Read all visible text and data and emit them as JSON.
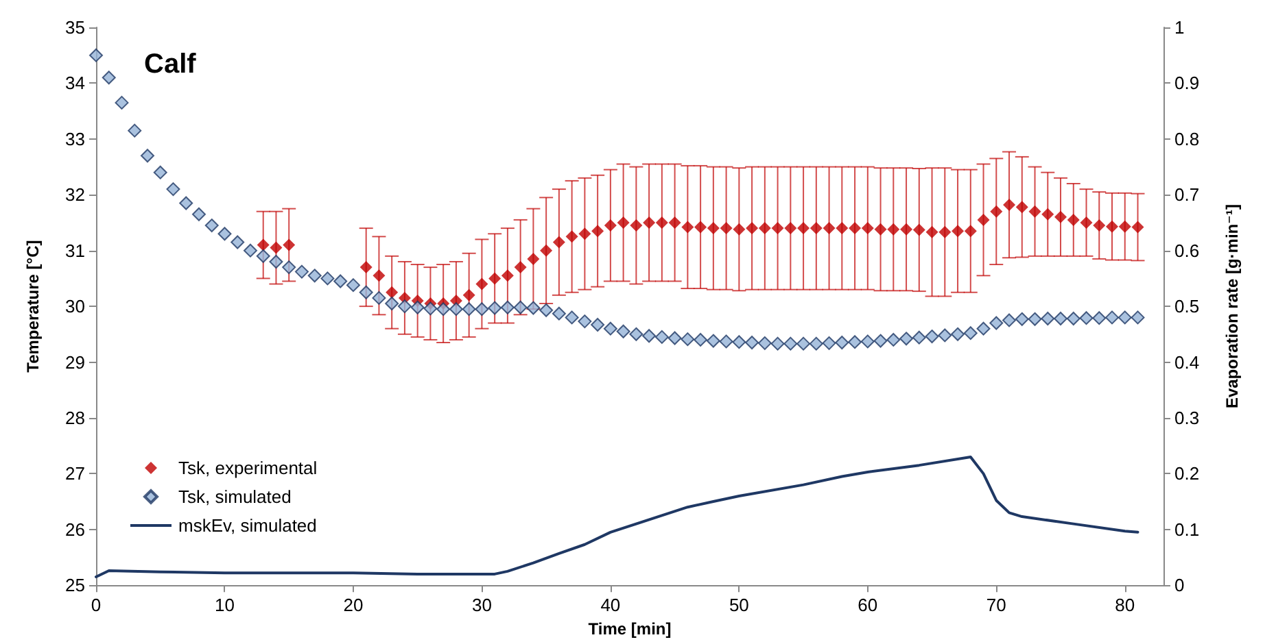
{
  "chart_data": {
    "type": "scatter",
    "title": "Calf",
    "xlabel": "Time [min]",
    "ylabel": "Temperature [°C]",
    "y2label": "Evaporation rate [g·min⁻¹]",
    "xlim": [
      0,
      83
    ],
    "xticks": [
      0,
      10,
      20,
      30,
      40,
      50,
      60,
      70,
      80
    ],
    "ylim": [
      25,
      35
    ],
    "yticks": [
      25,
      26,
      27,
      28,
      29,
      30,
      31,
      32,
      33,
      34,
      35
    ],
    "y2lim": [
      0,
      1
    ],
    "y2ticks": [
      0,
      0.1,
      0.2,
      0.3,
      0.4,
      0.5,
      0.6,
      0.7,
      0.8,
      0.9,
      1
    ],
    "grid": false,
    "legend": "bottom left",
    "marker": "diamond",
    "x": [
      0,
      1,
      2,
      3,
      4,
      5,
      6,
      7,
      8,
      9,
      10,
      11,
      12,
      13,
      14,
      15,
      16,
      17,
      18,
      19,
      20,
      21,
      22,
      23,
      24,
      25,
      26,
      27,
      28,
      29,
      30,
      31,
      32,
      33,
      34,
      35,
      36,
      37,
      38,
      39,
      40,
      41,
      42,
      43,
      44,
      45,
      46,
      47,
      48,
      49,
      50,
      51,
      52,
      53,
      54,
      55,
      56,
      57,
      58,
      59,
      60,
      61,
      62,
      63,
      64,
      65,
      66,
      67,
      68,
      69,
      70,
      71,
      72,
      73,
      74,
      75,
      76,
      77,
      78,
      79,
      80,
      81
    ],
    "series": [
      {
        "name": "Tsk, experimental",
        "color": "#c00000",
        "x": [
          13,
          14,
          15,
          21,
          22,
          23,
          24,
          25,
          26,
          27,
          28,
          29,
          30,
          31,
          32,
          33,
          34,
          35,
          36,
          37,
          38,
          39,
          40,
          41,
          42,
          43,
          44,
          45,
          46,
          47,
          48,
          49,
          50,
          51,
          52,
          53,
          54,
          55,
          56,
          57,
          58,
          59,
          60,
          61,
          62,
          63,
          64,
          65,
          66,
          67,
          68,
          69,
          70,
          71,
          72,
          73,
          74,
          75,
          76,
          77,
          78,
          79,
          80,
          81
        ],
        "values": [
          31.1,
          31.05,
          31.1,
          30.7,
          30.55,
          30.25,
          30.15,
          30.1,
          30.05,
          30.05,
          30.1,
          30.2,
          30.4,
          30.5,
          30.55,
          30.7,
          30.85,
          31.0,
          31.15,
          31.25,
          31.3,
          31.35,
          31.45,
          31.5,
          31.45,
          31.5,
          31.5,
          31.5,
          31.42,
          31.42,
          31.4,
          31.4,
          31.38,
          31.4,
          31.4,
          31.4,
          31.4,
          31.4,
          31.4,
          31.4,
          31.4,
          31.4,
          31.4,
          31.38,
          31.38,
          31.38,
          31.37,
          31.33,
          31.33,
          31.35,
          31.35,
          31.55,
          31.7,
          31.82,
          31.78,
          31.7,
          31.65,
          31.6,
          31.55,
          31.5,
          31.45,
          31.43,
          31.43,
          31.42
        ],
        "errors": [
          0.6,
          0.65,
          0.65,
          0.7,
          0.7,
          0.65,
          0.65,
          0.65,
          0.65,
          0.7,
          0.7,
          0.75,
          0.8,
          0.8,
          0.85,
          0.85,
          0.9,
          0.95,
          0.95,
          1.0,
          1.0,
          1.0,
          1.0,
          1.05,
          1.05,
          1.05,
          1.05,
          1.05,
          1.1,
          1.1,
          1.1,
          1.1,
          1.1,
          1.1,
          1.1,
          1.1,
          1.1,
          1.1,
          1.1,
          1.1,
          1.1,
          1.1,
          1.1,
          1.1,
          1.1,
          1.1,
          1.1,
          1.15,
          1.15,
          1.1,
          1.1,
          1.0,
          0.95,
          0.95,
          0.9,
          0.8,
          0.75,
          0.7,
          0.65,
          0.6,
          0.6,
          0.6,
          0.6,
          0.6
        ]
      },
      {
        "name": "Tsk, simulated",
        "color": "#95b3d7",
        "values": [
          34.5,
          34.1,
          33.65,
          33.15,
          32.7,
          32.4,
          32.1,
          31.85,
          31.65,
          31.45,
          31.3,
          31.15,
          31.0,
          30.9,
          30.8,
          30.7,
          30.62,
          30.55,
          30.5,
          30.45,
          30.38,
          30.25,
          30.15,
          30.05,
          30.0,
          29.98,
          29.96,
          29.95,
          29.95,
          29.95,
          29.95,
          29.97,
          29.98,
          29.98,
          29.97,
          29.93,
          29.87,
          29.8,
          29.73,
          29.67,
          29.6,
          29.55,
          29.5,
          29.47,
          29.45,
          29.43,
          29.41,
          29.4,
          29.38,
          29.37,
          29.36,
          29.35,
          29.34,
          29.33,
          29.33,
          29.33,
          29.33,
          29.34,
          29.35,
          29.36,
          29.37,
          29.38,
          29.4,
          29.42,
          29.44,
          29.46,
          29.48,
          29.5,
          29.52,
          29.6,
          29.7,
          29.75,
          29.77,
          29.77,
          29.78,
          29.78,
          29.78,
          29.79,
          29.79,
          29.8,
          29.8,
          29.8
        ]
      },
      {
        "name": "mskEv, simulated",
        "type": "line",
        "axis": "y2",
        "marker": "none",
        "color": "#1f3864",
        "x": [
          0,
          1,
          5,
          10,
          20,
          25,
          31,
          32,
          34,
          36,
          38,
          40,
          44,
          46,
          48,
          50,
          55,
          58,
          60,
          64,
          68,
          69,
          70,
          71,
          72,
          76,
          80,
          81
        ],
        "values": [
          0.015,
          0.026,
          0.024,
          0.022,
          0.022,
          0.02,
          0.02,
          0.025,
          0.04,
          0.057,
          0.073,
          0.095,
          0.125,
          0.14,
          0.15,
          0.16,
          0.18,
          0.195,
          0.203,
          0.215,
          0.23,
          0.2,
          0.152,
          0.13,
          0.123,
          0.11,
          0.097,
          0.095
        ]
      }
    ]
  }
}
